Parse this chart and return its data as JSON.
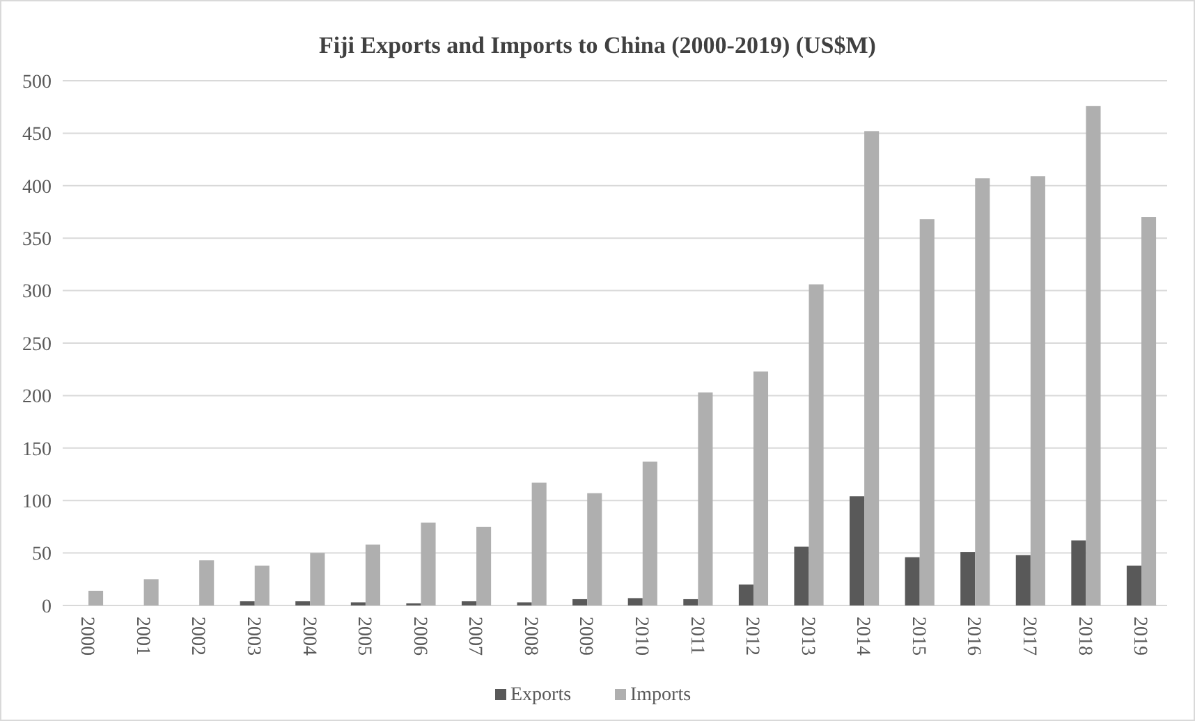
{
  "chart_data": {
    "type": "bar",
    "title": "Fiji Exports and Imports to China (2000-2019) (US$M)",
    "categories": [
      "2000",
      "2001",
      "2002",
      "2003",
      "2004",
      "2005",
      "2006",
      "2007",
      "2008",
      "2009",
      "2010",
      "2011",
      "2012",
      "2013",
      "2014",
      "2015",
      "2016",
      "2017",
      "2018",
      "2019"
    ],
    "series": [
      {
        "name": "Exports",
        "color": "#595959",
        "values": [
          0,
          0,
          0,
          4,
          4,
          3,
          2,
          4,
          3,
          6,
          7,
          6,
          20,
          56,
          104,
          46,
          51,
          48,
          62,
          38
        ]
      },
      {
        "name": "Imports",
        "color": "#afafaf",
        "values": [
          14,
          25,
          43,
          38,
          50,
          58,
          79,
          75,
          117,
          107,
          137,
          203,
          223,
          306,
          452,
          368,
          407,
          409,
          476,
          370
        ]
      }
    ],
    "ylim": [
      0,
      500
    ],
    "yticks": [
      0,
      50,
      100,
      150,
      200,
      250,
      300,
      350,
      400,
      450,
      500
    ],
    "grid": "y",
    "legend": "bottom"
  }
}
